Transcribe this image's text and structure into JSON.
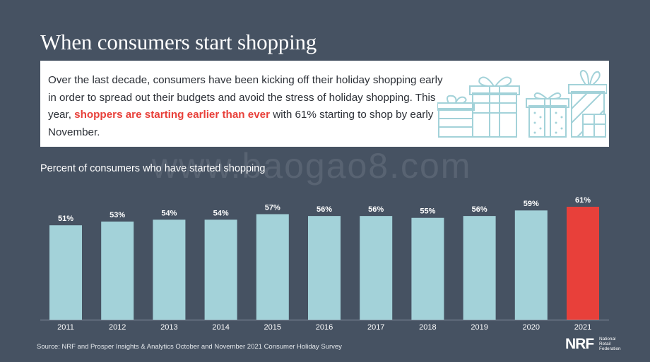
{
  "title": "When consumers start shopping",
  "intro": {
    "before": "Over the last decade, consumers have been kicking off their holiday shopping early in order to spread out their budgets and avoid the stress of holiday shopping. This year, ",
    "highlight": "shoppers are starting earlier than ever",
    "after": " with 61% starting to shop by early November."
  },
  "watermark": "www.baogao8.com",
  "colors": {
    "background": "#465262",
    "bar": "#a3d2d9",
    "highlight_bar": "#e8403a",
    "gift_icons": "#a3d2d9"
  },
  "icons": [
    "gift-boxes-icon"
  ],
  "chart_data": {
    "type": "bar",
    "title": "Percent of consumers who have started shopping",
    "categories": [
      "2011",
      "2012",
      "2013",
      "2014",
      "2015",
      "2016",
      "2017",
      "2018",
      "2019",
      "2020",
      "2021"
    ],
    "values": [
      51,
      53,
      54,
      54,
      57,
      56,
      56,
      55,
      56,
      59,
      61
    ],
    "data_labels": [
      "51%",
      "53%",
      "54%",
      "54%",
      "57%",
      "56%",
      "56%",
      "55%",
      "56%",
      "59%",
      "61%"
    ],
    "highlighted_category": "2021",
    "grid": false,
    "legend": "none",
    "ylim": [
      0,
      61
    ]
  },
  "source": "Source: NRF and Prosper Insights & Analytics October and November 2021 Consumer Holiday Survey",
  "logo": {
    "mark": "NRF",
    "words": [
      "National",
      "Retail",
      "Federation"
    ]
  }
}
